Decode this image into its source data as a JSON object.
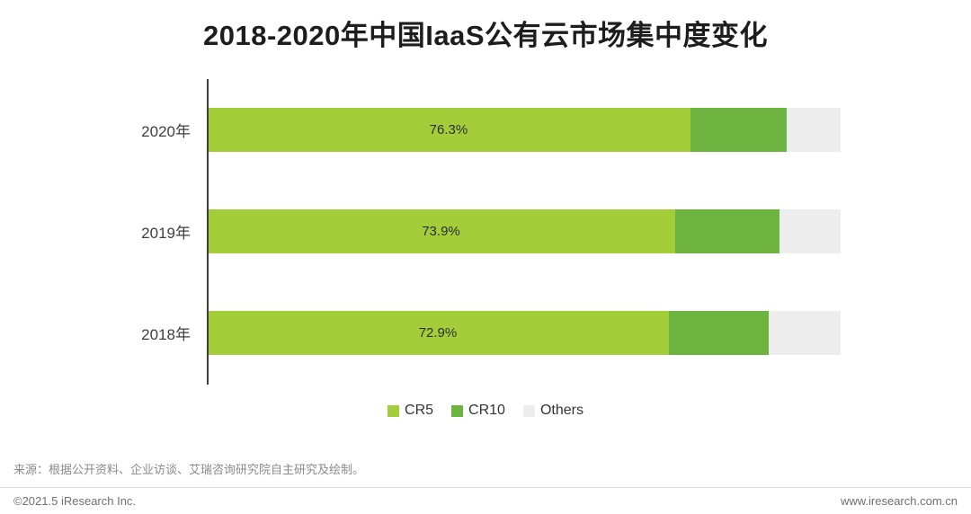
{
  "title": "2018-2020年中国IaaS公有云市场集中度变化",
  "chart_data": {
    "type": "bar",
    "orientation": "horizontal",
    "stacked": true,
    "title": "2018-2020年中国IaaS公有云市场集中度变化",
    "categories": [
      "2020年",
      "2019年",
      "2018年"
    ],
    "series": [
      {
        "name": "CR5",
        "color": "#a4ce39",
        "values": [
          76.3,
          73.9,
          72.9
        ],
        "labels": [
          "76.3%",
          "73.9%",
          "72.9%"
        ]
      },
      {
        "name": "CR10",
        "color": "#6db33f",
        "values": [
          15.2,
          16.5,
          15.7
        ]
      },
      {
        "name": "Others",
        "color": "#ededed",
        "values": [
          8.5,
          9.6,
          11.4
        ]
      }
    ],
    "xlim": [
      0,
      100
    ],
    "grid": false,
    "legend": [
      "CR5",
      "CR10",
      "Others"
    ],
    "legend_position": "bottom",
    "value_labels": "only CR5 segments are labeled; CR10/Others segment sizes estimated from bar lengths"
  },
  "colors": {
    "cr5": "#a4ce39",
    "cr10": "#6db33f",
    "others": "#ededed",
    "axis": "#3d3d3d"
  },
  "source": "来源：根据公开资料、企业访谈、艾瑞咨询研究院自主研究及绘制。",
  "footer": {
    "left": "©2021.5 iResearch Inc.",
    "right": "www.iresearch.com.cn"
  }
}
